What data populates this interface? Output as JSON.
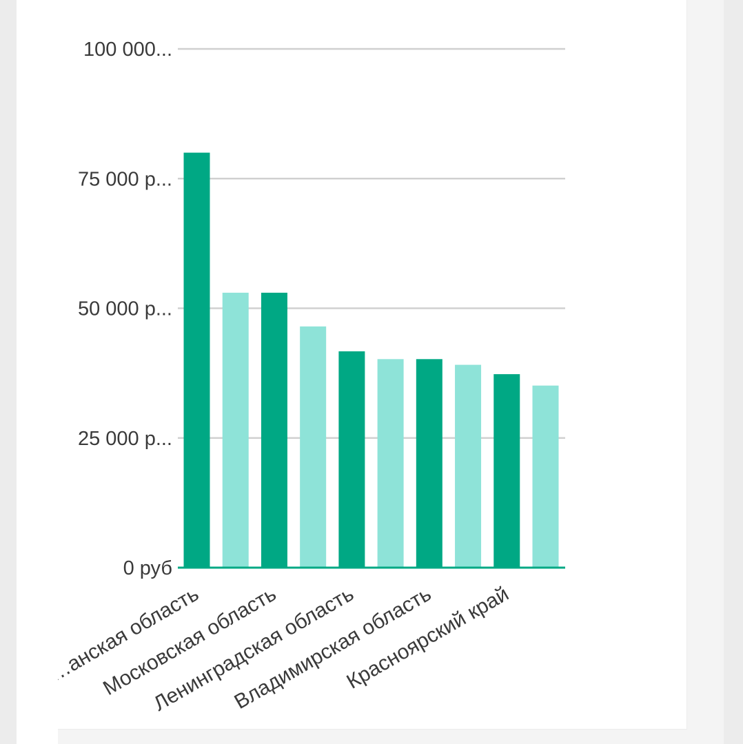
{
  "chart_data": {
    "type": "bar",
    "title": "",
    "xlabel": "",
    "ylabel": "",
    "ylim": [
      0,
      100000
    ],
    "yticks": [
      {
        "value": 0,
        "label": "0 руб"
      },
      {
        "value": 25000,
        "label": "25 000 р..."
      },
      {
        "value": 50000,
        "label": "50 000 р..."
      },
      {
        "value": 75000,
        "label": "75 000 р..."
      },
      {
        "value": 100000,
        "label": "100 000..."
      }
    ],
    "categories": [
      "",
      "",
      "",
      "",
      "",
      "",
      "",
      "",
      "",
      ""
    ],
    "category_labels": [
      {
        "index": 0,
        "text": "…анская область"
      },
      {
        "index": 2,
        "text": "Московская область"
      },
      {
        "index": 4,
        "text": "Ленинградская область"
      },
      {
        "index": 6,
        "text": "Владимирская область"
      },
      {
        "index": 8,
        "text": "Красноярский край"
      }
    ],
    "values": [
      80000,
      53000,
      53000,
      46500,
      41700,
      40200,
      40200,
      39100,
      37300,
      35100
    ],
    "colors": {
      "dark": "#00a884",
      "light": "#8ee3d8",
      "grid": "#d0d0d0",
      "axis": "#00a884"
    },
    "grid": true,
    "legend": "none"
  }
}
